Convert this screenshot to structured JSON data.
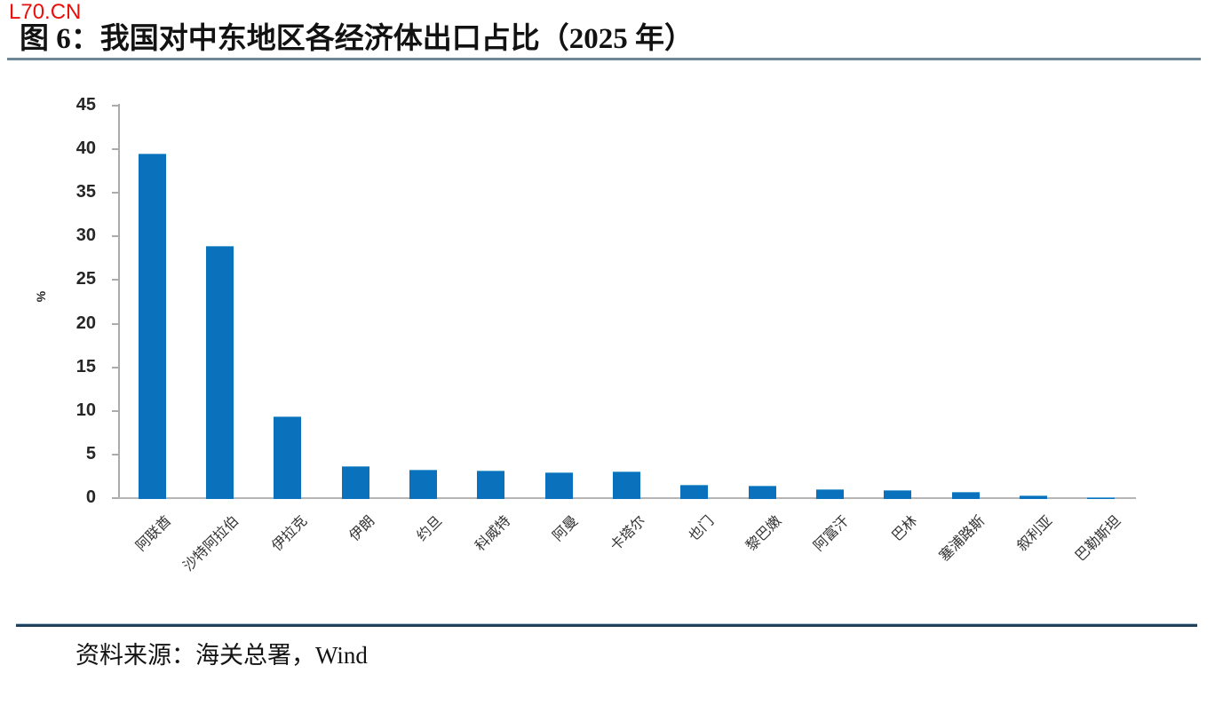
{
  "watermark": "L70.CN",
  "title": "图 6：我国对中东地区各经济体出口占比（2025 年）",
  "source": "资料来源：海关总署，Wind",
  "colors": {
    "bar": "#0a72bd",
    "watermark_red": "#e8100c",
    "title_rule": "#6e8794",
    "source_rule_dark": "#21405c",
    "axis_gray": "#ababab"
  },
  "chart_data": {
    "type": "bar",
    "title": "我国对中东地区各经济体出口占比（2025 年）",
    "categories": [
      "阿联酋",
      "沙特阿拉伯",
      "伊拉克",
      "伊朗",
      "约旦",
      "科威特",
      "阿曼",
      "卡塔尔",
      "也门",
      "黎巴嫩",
      "阿富汗",
      "巴林",
      "塞浦路斯",
      "叙利亚",
      "巴勒斯坦"
    ],
    "values": [
      39.5,
      28.9,
      9.4,
      3.7,
      3.3,
      3.2,
      3.0,
      3.1,
      1.5,
      1.4,
      1.0,
      0.9,
      0.7,
      0.35,
      0.08
    ],
    "xlabel": "",
    "ylabel": "%",
    "ylim": [
      0,
      45
    ],
    "yticks": [
      0,
      5,
      10,
      15,
      20,
      25,
      30,
      35,
      40,
      45
    ],
    "grid": false,
    "legend_position": "none",
    "bar_color": "#0a72bd"
  }
}
